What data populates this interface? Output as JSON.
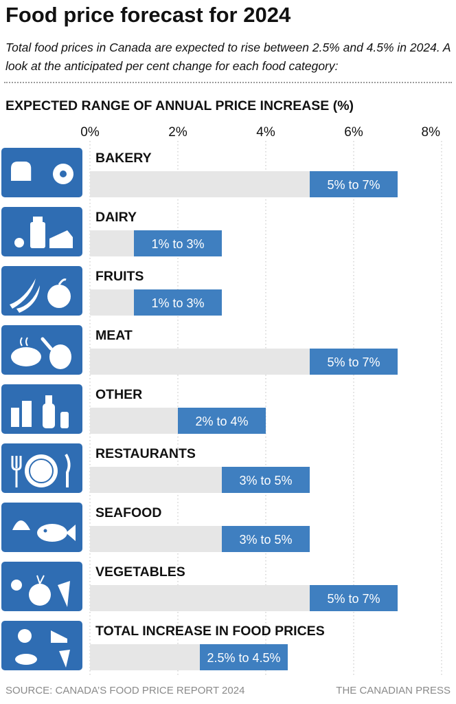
{
  "header": {
    "title": "Food price forecast for 2024",
    "subtitle": "Total food prices in Canada are expected to rise between 2.5% and 4.5% in 2024. A look at the anticipated per cent change for each food category:",
    "section_label": "EXPECTED RANGE OF ANNUAL PRICE INCREASE (%)"
  },
  "footer": {
    "source": "SOURCE: CANADA’S FOOD PRICE REPORT 2024",
    "credit": "THE CANADIAN PRESS"
  },
  "colors": {
    "accent": "#3f7fc0",
    "icon_bg": "#2f6db3",
    "track": "#e6e6e6",
    "grid": "#c8c8c8"
  },
  "chart_data": {
    "type": "bar",
    "orientation": "horizontal-range",
    "xlim": [
      0,
      8
    ],
    "xticks": [
      0,
      2,
      4,
      6,
      8
    ],
    "xtick_labels": [
      "0%",
      "2%",
      "4%",
      "6%",
      "8%"
    ],
    "grid": true,
    "categories": [
      {
        "name": "BAKERY",
        "icon": "bread-donut-icon",
        "low": 5,
        "high": 7,
        "label": "5% to 7%"
      },
      {
        "name": "DAIRY",
        "icon": "milk-cheese-icon",
        "low": 1,
        "high": 3,
        "label": "1% to 3%"
      },
      {
        "name": "FRUITS",
        "icon": "banana-apple-icon",
        "low": 1,
        "high": 3,
        "label": "1% to 3%"
      },
      {
        "name": "MEAT",
        "icon": "steak-drumstick-icon",
        "low": 5,
        "high": 7,
        "label": "5% to 7%"
      },
      {
        "name": "OTHER",
        "icon": "cans-bottles-icon",
        "low": 2,
        "high": 4,
        "label": "2% to 4%"
      },
      {
        "name": "RESTAURANTS",
        "icon": "plate-cutlery-icon",
        "low": 3,
        "high": 5,
        "label": "3% to 5%"
      },
      {
        "name": "SEAFOOD",
        "icon": "shell-fish-icon",
        "low": 3,
        "high": 5,
        "label": "3% to 5%"
      },
      {
        "name": "VEGETABLES",
        "icon": "vegetables-icon",
        "low": 5,
        "high": 7,
        "label": "5% to 7%"
      },
      {
        "name": "TOTAL INCREASE IN FOOD PRICES",
        "icon": "food-mix-icon",
        "low": 2.5,
        "high": 4.5,
        "label": "2.5% to 4.5%"
      }
    ]
  }
}
